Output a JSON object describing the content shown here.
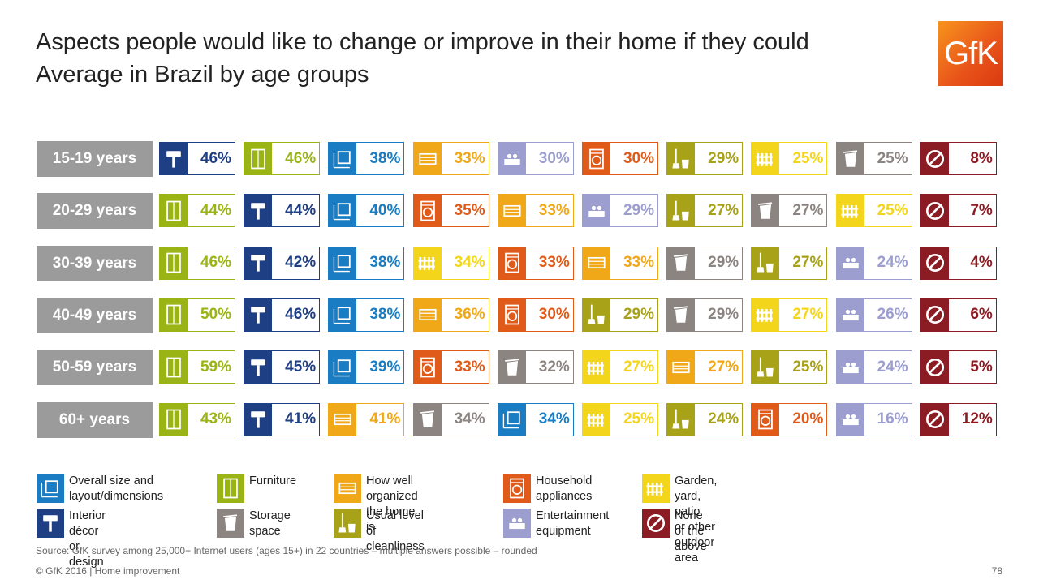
{
  "title_line1": "Aspects people would like to change or improve in their home if they could",
  "title_line2": "Average in Brazil by age groups",
  "logo_text": "GfK",
  "colors": {
    "size": "#1a7dc3",
    "decor": "#1f3f84",
    "furniture": "#9ab315",
    "organized": "#f0a818",
    "appliances": "#e05a1a",
    "cleanliness": "#a8a219",
    "garden": "#f3d61b",
    "storage": "#8c8480",
    "entertainment": "#9c9ecf",
    "none": "#8c1c24",
    "age_label_bg": "#9b9b9b"
  },
  "chart_data": {
    "type": "table",
    "rows": [
      {
        "label": "15-19 years",
        "cells": [
          {
            "cat": "decor",
            "value": "46%"
          },
          {
            "cat": "furniture",
            "value": "46%"
          },
          {
            "cat": "size",
            "value": "38%"
          },
          {
            "cat": "organized",
            "value": "33%"
          },
          {
            "cat": "entertainment",
            "value": "30%"
          },
          {
            "cat": "appliances",
            "value": "30%"
          },
          {
            "cat": "cleanliness",
            "value": "29%"
          },
          {
            "cat": "garden",
            "value": "25%"
          },
          {
            "cat": "storage",
            "value": "25%"
          },
          {
            "cat": "none",
            "value": "8%"
          }
        ]
      },
      {
        "label": "20-29 years",
        "cells": [
          {
            "cat": "furniture",
            "value": "44%"
          },
          {
            "cat": "decor",
            "value": "44%"
          },
          {
            "cat": "size",
            "value": "40%"
          },
          {
            "cat": "appliances",
            "value": "35%"
          },
          {
            "cat": "organized",
            "value": "33%"
          },
          {
            "cat": "entertainment",
            "value": "29%"
          },
          {
            "cat": "cleanliness",
            "value": "27%"
          },
          {
            "cat": "storage",
            "value": "27%"
          },
          {
            "cat": "garden",
            "value": "25%"
          },
          {
            "cat": "none",
            "value": "7%"
          }
        ]
      },
      {
        "label": "30-39 years",
        "cells": [
          {
            "cat": "furniture",
            "value": "46%"
          },
          {
            "cat": "decor",
            "value": "42%"
          },
          {
            "cat": "size",
            "value": "38%"
          },
          {
            "cat": "garden",
            "value": "34%"
          },
          {
            "cat": "appliances",
            "value": "33%"
          },
          {
            "cat": "organized",
            "value": "33%"
          },
          {
            "cat": "storage",
            "value": "29%"
          },
          {
            "cat": "cleanliness",
            "value": "27%"
          },
          {
            "cat": "entertainment",
            "value": "24%"
          },
          {
            "cat": "none",
            "value": "4%"
          }
        ]
      },
      {
        "label": "40-49 years",
        "cells": [
          {
            "cat": "furniture",
            "value": "50%"
          },
          {
            "cat": "decor",
            "value": "46%"
          },
          {
            "cat": "size",
            "value": "38%"
          },
          {
            "cat": "organized",
            "value": "36%"
          },
          {
            "cat": "appliances",
            "value": "30%"
          },
          {
            "cat": "cleanliness",
            "value": "29%"
          },
          {
            "cat": "storage",
            "value": "29%"
          },
          {
            "cat": "garden",
            "value": "27%"
          },
          {
            "cat": "entertainment",
            "value": "26%"
          },
          {
            "cat": "none",
            "value": "6%"
          }
        ]
      },
      {
        "label": "50-59 years",
        "cells": [
          {
            "cat": "furniture",
            "value": "59%"
          },
          {
            "cat": "decor",
            "value": "45%"
          },
          {
            "cat": "size",
            "value": "39%"
          },
          {
            "cat": "appliances",
            "value": "33%"
          },
          {
            "cat": "storage",
            "value": "32%"
          },
          {
            "cat": "garden",
            "value": "27%"
          },
          {
            "cat": "organized",
            "value": "27%"
          },
          {
            "cat": "cleanliness",
            "value": "25%"
          },
          {
            "cat": "entertainment",
            "value": "24%"
          },
          {
            "cat": "none",
            "value": "5%"
          }
        ]
      },
      {
        "label": "60+ years",
        "cells": [
          {
            "cat": "furniture",
            "value": "43%"
          },
          {
            "cat": "decor",
            "value": "41%"
          },
          {
            "cat": "organized",
            "value": "41%"
          },
          {
            "cat": "storage",
            "value": "34%"
          },
          {
            "cat": "size",
            "value": "34%"
          },
          {
            "cat": "garden",
            "value": "25%"
          },
          {
            "cat": "cleanliness",
            "value": "24%"
          },
          {
            "cat": "appliances",
            "value": "20%"
          },
          {
            "cat": "entertainment",
            "value": "16%"
          },
          {
            "cat": "none",
            "value": "12%"
          }
        ]
      }
    ]
  },
  "legend": [
    {
      "cat": "size",
      "label": "Overall size and\nlayout/dimensions"
    },
    {
      "cat": "decor",
      "label": "Interior décor\nor design"
    },
    {
      "cat": "furniture",
      "label": "Furniture"
    },
    {
      "cat": "storage",
      "label": "Storage\nspace"
    },
    {
      "cat": "organized",
      "label": "How well organized\nthe home is"
    },
    {
      "cat": "cleanliness",
      "label": "Usual level\nof cleanliness"
    },
    {
      "cat": "appliances",
      "label": "Household\nappliances"
    },
    {
      "cat": "entertainment",
      "label": "Entertainment\nequipment"
    },
    {
      "cat": "garden",
      "label": "Garden, yard, patio\nor other outdoor area"
    },
    {
      "cat": "none",
      "label": "None of the\nabove"
    }
  ],
  "source": "Source: GfK survey among 25,000+ Internet users (ages 15+) in 22 countries – multiple answers possible – rounded",
  "footer": "© GfK 2016 | Home improvement",
  "page_number": "78"
}
